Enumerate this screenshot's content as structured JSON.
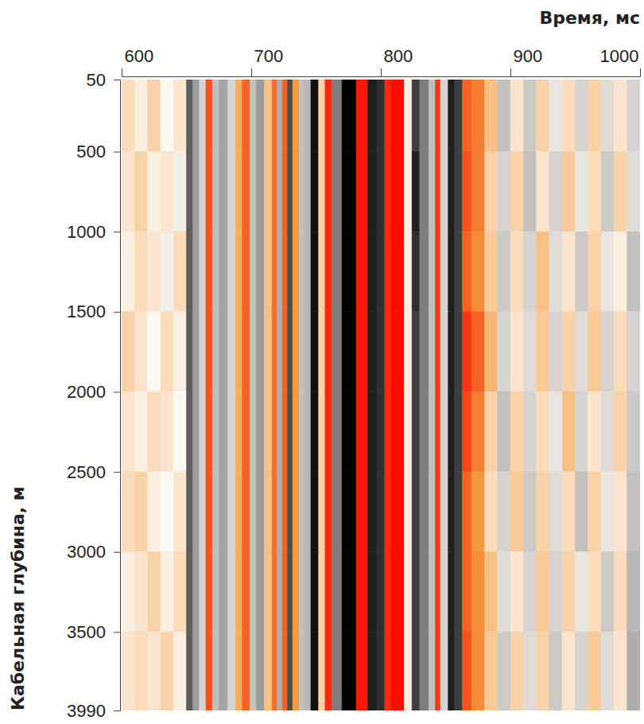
{
  "chart_data": {
    "type": "heatmap",
    "x_label": "Время, мс",
    "y_label": "Кабельная глубина, м",
    "xlim": [
      600,
      1000
    ],
    "xticks": [
      600,
      700,
      800,
      900,
      1000
    ],
    "ylim": [
      50,
      3990
    ],
    "yticks": [
      50,
      500,
      1000,
      1500,
      2000,
      2500,
      3000,
      3500,
      3990
    ],
    "zlim": [
      -1,
      1
    ],
    "x_edges": [
      600,
      610,
      620,
      630,
      640,
      650,
      655,
      660,
      665,
      670,
      675,
      682,
      688,
      693,
      699,
      704,
      710,
      716,
      720,
      724,
      728,
      732,
      737,
      741,
      746,
      752,
      757,
      762,
      770,
      781,
      790,
      797,
      803,
      808,
      818,
      824,
      830,
      837,
      842,
      846,
      852,
      857,
      863,
      870,
      880,
      890,
      900,
      910,
      920,
      930,
      940,
      950,
      960,
      970,
      980,
      990,
      1000
    ],
    "y_edges": [
      50,
      500,
      1000,
      1500,
      2000,
      2500,
      3000,
      3500,
      3990
    ],
    "cells": [
      [
        0.15,
        0.05,
        0.2,
        0.0,
        0.1,
        -0.7,
        -0.5,
        -0.2,
        0.75,
        -0.3,
        -0.45,
        -0.2,
        0.4,
        0.7,
        -0.3,
        -0.5,
        0.3,
        0.65,
        -0.4,
        0.7,
        -0.75,
        0.5,
        -0.3,
        -0.35,
        -0.95,
        0.2,
        0.9,
        -0.6,
        -1,
        0.95,
        -0.9,
        -0.85,
        0.9,
        1,
        0.05,
        -0.8,
        -0.6,
        -0.3,
        0.85,
        -0.2,
        -0.9,
        -0.8,
        0.7,
        0.6,
        0.3,
        -0.3,
        0.1,
        -0.25,
        0.2,
        -0.1,
        0.15,
        -0.2,
        0.2,
        -0.15,
        0.1,
        -0.2
      ],
      [
        0.1,
        0.2,
        0.05,
        0.1,
        -0.05,
        -0.7,
        -0.5,
        -0.2,
        0.75,
        -0.3,
        -0.45,
        -0.2,
        0.4,
        0.7,
        -0.3,
        -0.5,
        0.3,
        0.65,
        -0.4,
        0.7,
        -0.75,
        0.5,
        -0.3,
        -0.35,
        -0.95,
        0.2,
        0.9,
        -0.6,
        -1,
        0.95,
        -0.9,
        -0.85,
        0.9,
        1,
        0.05,
        -0.9,
        -0.6,
        -0.3,
        0.85,
        -0.2,
        -0.9,
        -0.8,
        0.75,
        0.6,
        0.2,
        -0.2,
        0.2,
        -0.3,
        0.1,
        -0.2,
        0.25,
        -0.1,
        0.15,
        -0.25,
        0.2,
        -0.15
      ],
      [
        0.05,
        0.15,
        0.1,
        -0.05,
        0.15,
        -0.7,
        -0.5,
        -0.2,
        0.75,
        -0.3,
        -0.45,
        -0.2,
        0.4,
        0.7,
        -0.3,
        -0.5,
        0.3,
        0.65,
        -0.4,
        0.7,
        -0.75,
        0.5,
        -0.3,
        -0.35,
        -0.95,
        0.2,
        0.9,
        -0.6,
        -1,
        0.95,
        -0.9,
        -0.85,
        0.9,
        1,
        0.05,
        -0.85,
        -0.6,
        -0.3,
        0.85,
        -0.2,
        -0.9,
        -0.8,
        0.7,
        0.55,
        0.25,
        -0.25,
        0.15,
        -0.2,
        0.3,
        -0.15,
        0.1,
        -0.25,
        0.2,
        -0.1,
        0.05,
        -0.3
      ],
      [
        0.2,
        0.1,
        0.0,
        0.15,
        0.05,
        -0.7,
        -0.5,
        -0.2,
        0.75,
        -0.3,
        -0.45,
        -0.2,
        0.4,
        0.7,
        -0.3,
        -0.5,
        0.3,
        0.65,
        -0.4,
        0.7,
        -0.75,
        0.5,
        -0.3,
        -0.35,
        -0.95,
        0.2,
        0.9,
        -0.6,
        -1,
        0.95,
        -0.9,
        -0.85,
        0.9,
        1,
        0.05,
        -0.8,
        -0.6,
        -0.3,
        0.85,
        -0.2,
        -0.9,
        -0.8,
        0.85,
        0.7,
        0.35,
        -0.2,
        0.1,
        -0.15,
        0.25,
        -0.2,
        0.2,
        -0.15,
        0.25,
        -0.2,
        0.15,
        -0.2
      ],
      [
        0.1,
        0.05,
        0.15,
        0.1,
        0.0,
        -0.7,
        -0.5,
        -0.2,
        0.75,
        -0.3,
        -0.45,
        -0.2,
        0.4,
        0.7,
        -0.3,
        -0.5,
        0.3,
        0.65,
        -0.4,
        0.7,
        -0.75,
        0.5,
        -0.3,
        -0.35,
        -0.95,
        0.2,
        0.9,
        -0.6,
        -1,
        0.95,
        -0.9,
        -0.85,
        0.9,
        1,
        0.05,
        -0.8,
        -0.6,
        -0.3,
        0.85,
        -0.2,
        -0.9,
        -0.8,
        0.8,
        0.6,
        0.2,
        -0.3,
        0.2,
        -0.2,
        0.15,
        -0.1,
        0.3,
        -0.2,
        0.1,
        -0.15,
        0.2,
        -0.25
      ],
      [
        0.15,
        0.2,
        0.05,
        0.0,
        0.1,
        -0.7,
        -0.5,
        -0.2,
        0.75,
        -0.3,
        -0.45,
        -0.2,
        0.4,
        0.7,
        -0.3,
        -0.5,
        0.3,
        0.65,
        -0.4,
        0.7,
        -0.75,
        0.5,
        -0.3,
        -0.35,
        -0.95,
        0.2,
        0.9,
        -0.6,
        -1,
        0.95,
        -0.9,
        -0.85,
        0.9,
        1,
        0.05,
        -0.8,
        -0.6,
        -0.3,
        0.85,
        -0.2,
        -0.9,
        -0.8,
        0.7,
        0.5,
        0.15,
        -0.2,
        0.25,
        -0.25,
        0.2,
        -0.15,
        0.15,
        -0.3,
        0.2,
        -0.1,
        0.1,
        -0.3
      ],
      [
        0.05,
        0.1,
        0.2,
        0.05,
        0.15,
        -0.7,
        -0.5,
        -0.2,
        0.75,
        -0.3,
        -0.45,
        -0.2,
        0.4,
        0.7,
        -0.3,
        -0.5,
        0.3,
        0.65,
        -0.4,
        0.7,
        -0.75,
        0.5,
        -0.3,
        -0.35,
        -0.95,
        0.2,
        0.9,
        -0.6,
        -1,
        0.95,
        -0.9,
        -0.85,
        0.9,
        1,
        0.05,
        -0.8,
        -0.6,
        -0.3,
        0.85,
        -0.2,
        -0.9,
        -0.8,
        0.7,
        0.55,
        0.3,
        -0.15,
        0.1,
        -0.2,
        0.25,
        -0.2,
        0.2,
        -0.1,
        0.15,
        -0.25,
        0.15,
        -0.35
      ],
      [
        0.1,
        0.15,
        0.1,
        0.2,
        0.05,
        -0.7,
        -0.5,
        -0.2,
        0.75,
        -0.3,
        -0.45,
        -0.2,
        0.4,
        0.7,
        -0.3,
        -0.5,
        0.3,
        0.65,
        -0.4,
        0.7,
        -0.75,
        0.5,
        -0.3,
        -0.35,
        -0.95,
        0.2,
        0.9,
        -0.6,
        -1,
        0.95,
        -0.9,
        -0.85,
        0.9,
        1,
        0.05,
        -0.8,
        -0.6,
        -0.3,
        0.85,
        -0.2,
        -0.9,
        -0.8,
        0.75,
        0.55,
        0.25,
        -0.25,
        0.2,
        -0.15,
        0.2,
        -0.25,
        0.1,
        -0.2,
        0.25,
        -0.15,
        0.1,
        -0.4
      ]
    ]
  }
}
